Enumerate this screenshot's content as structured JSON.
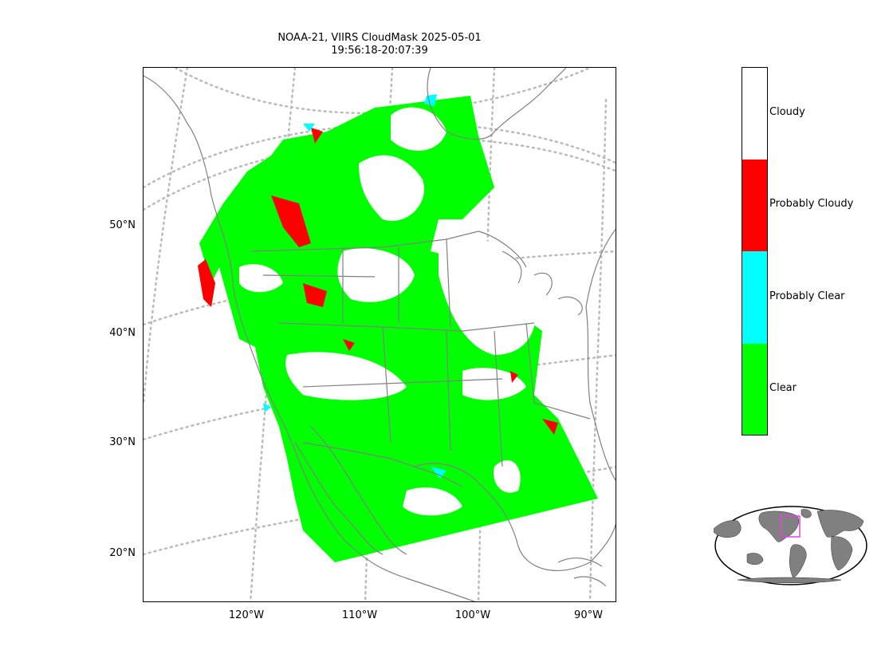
{
  "title": {
    "line1": "NOAA-21, VIIRS CloudMask 2025-05-01",
    "line2": "19:56:18-20:07:39"
  },
  "map": {
    "lat_labels": [
      "50°N",
      "40°N",
      "30°N",
      "20°N"
    ],
    "lon_labels": [
      "120°W",
      "110°W",
      "100°W",
      "90°W"
    ],
    "gridline_color": "#bbbbbb",
    "coastline_color": "#808080",
    "scan_colors": {
      "clear": "#00ff00",
      "probably_clear": "#00ffff",
      "probably_cloudy": "#ff0000",
      "cloudy": "#ffffff"
    }
  },
  "colorbar": {
    "categories": [
      {
        "label": "Cloudy",
        "color": "#ffffff"
      },
      {
        "label": "Probably Cloudy",
        "color": "#ff0000"
      },
      {
        "label": "Probably Clear",
        "color": "#00ffff"
      },
      {
        "label": "Clear",
        "color": "#00ff00"
      }
    ]
  },
  "inset": {
    "land_color": "#808080",
    "region_box_color": "#e040e0"
  }
}
